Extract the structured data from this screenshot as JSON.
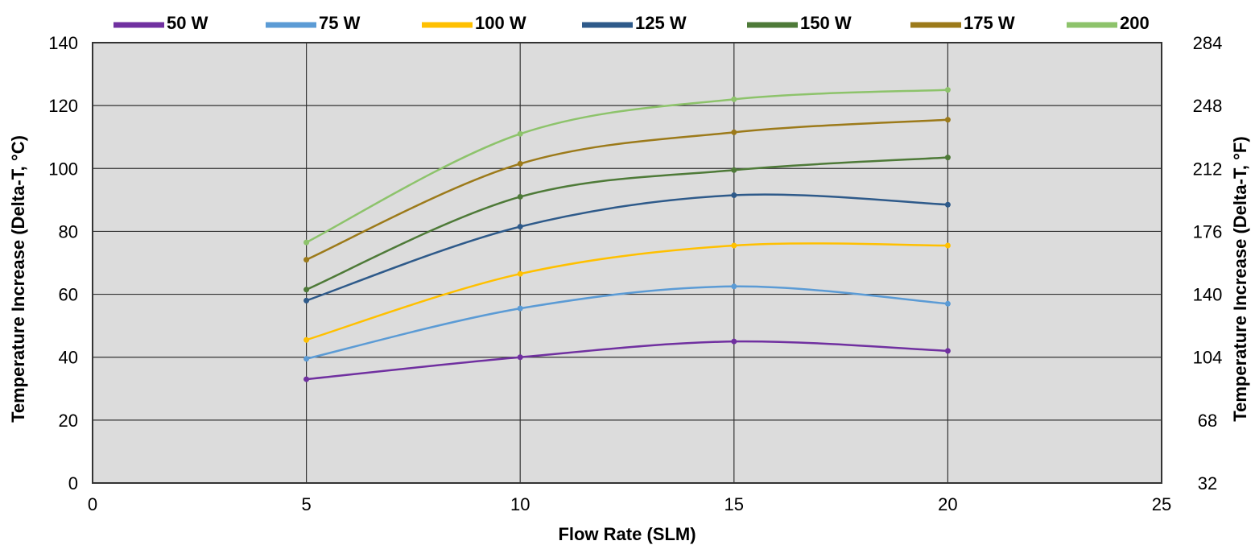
{
  "chart_data": {
    "type": "line",
    "title": "",
    "xlabel": "Flow Rate (SLM)",
    "ylabel": "Temperature Increase (Delta-T, °C)",
    "y2label": "Temperature Increase (Delta-T, °F)",
    "xlim": [
      0,
      25
    ],
    "ylim": [
      0,
      140
    ],
    "y2lim": [
      32,
      284
    ],
    "x_ticks": [
      "0",
      "5",
      "10",
      "15",
      "20",
      "25"
    ],
    "y_ticks": [
      "0",
      "20",
      "40",
      "60",
      "80",
      "100",
      "120",
      "140"
    ],
    "y2_ticks": [
      "32",
      "68",
      "104",
      "140",
      "176",
      "212",
      "248",
      "284"
    ],
    "grid": true,
    "legend_position": "top",
    "x": [
      5,
      10,
      15,
      20
    ],
    "series": [
      {
        "name": "50 W",
        "color": "#7030a0",
        "values": [
          33,
          40,
          45,
          42
        ]
      },
      {
        "name": "75 W",
        "color": "#5b9bd5",
        "values": [
          39.5,
          55.5,
          62.5,
          57
        ]
      },
      {
        "name": "100 W",
        "color": "#ffc000",
        "values": [
          45.5,
          66.5,
          75.5,
          75.5
        ]
      },
      {
        "name": "125 W",
        "color": "#2e5a8a",
        "values": [
          58,
          81.5,
          91.5,
          88.5
        ]
      },
      {
        "name": "150 W",
        "color": "#4e7a38",
        "values": [
          61.5,
          91,
          99.5,
          103.5
        ]
      },
      {
        "name": "175 W",
        "color": "#9c7a1a",
        "values": [
          71,
          101.5,
          111.5,
          115.5
        ]
      },
      {
        "name": "200",
        "color": "#8dc36b",
        "values": [
          76.5,
          111,
          122,
          125
        ]
      }
    ],
    "colors": {
      "plot_background": "#dcdcdc",
      "grid": "#333333",
      "axis": "#333333"
    }
  }
}
